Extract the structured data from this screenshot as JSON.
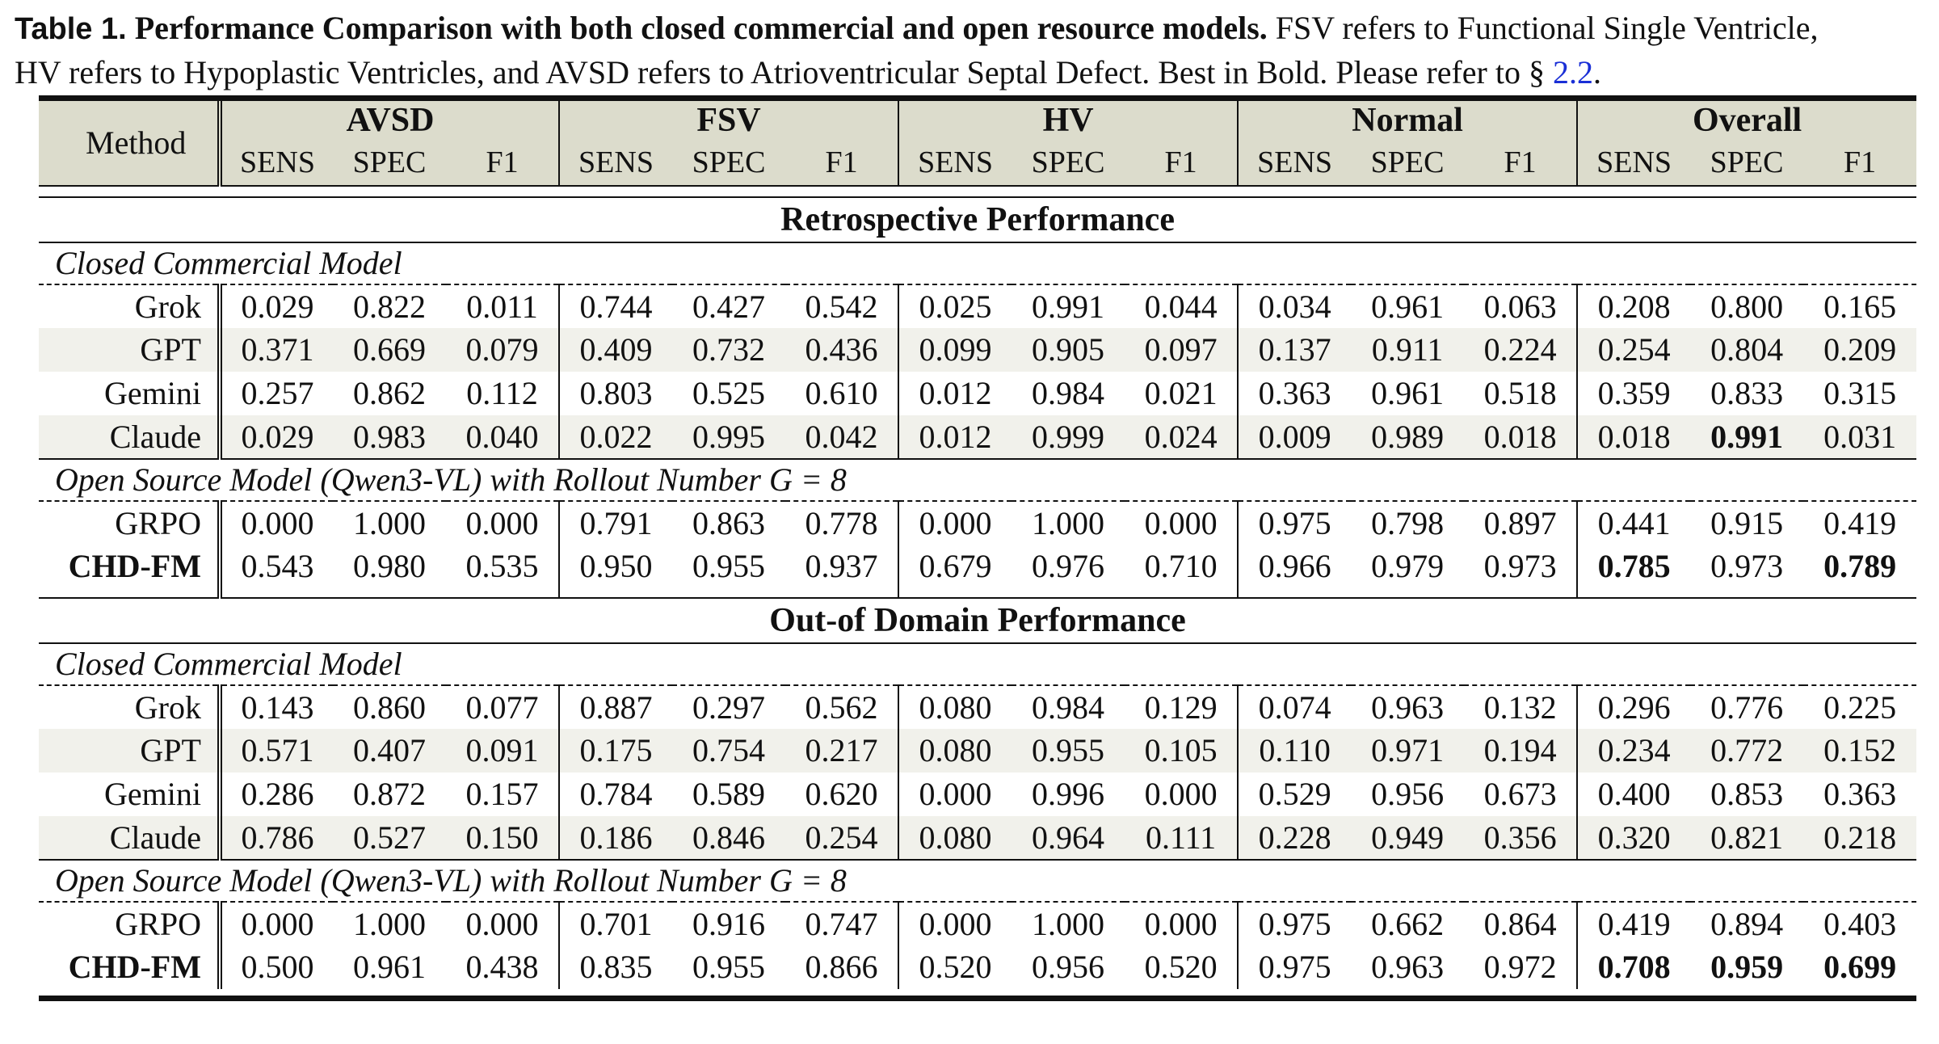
{
  "caption": {
    "label": "Table 1.",
    "title": "Performance Comparison with both closed commercial and open resource models.",
    "text_a": "FSV refers to Functional Single Ventricle,",
    "text_b": "HV refers to Hypoplastic Ventricles, and AVSD refers to Atrioventricular Septal Defect. Best in Bold. Please refer to §",
    "link": "2.2",
    "end": "."
  },
  "header": {
    "method": "Method",
    "groups": [
      "AVSD",
      "FSV",
      "HV",
      "Normal",
      "Overall"
    ],
    "metrics": [
      "SENS",
      "SPEC",
      "F1"
    ]
  },
  "sections": [
    {
      "title": "Retrospective Performance",
      "groups": [
        {
          "label": "Closed Commercial Model",
          "rows": [
            {
              "method": "Grok",
              "values": [
                "0.029",
                "0.822",
                "0.011",
                "0.744",
                "0.427",
                "0.542",
                "0.025",
                "0.991",
                "0.044",
                "0.034",
                "0.961",
                "0.063",
                "0.208",
                "0.800",
                "0.165"
              ]
            },
            {
              "method": "GPT",
              "values": [
                "0.371",
                "0.669",
                "0.079",
                "0.409",
                "0.732",
                "0.436",
                "0.099",
                "0.905",
                "0.097",
                "0.137",
                "0.911",
                "0.224",
                "0.254",
                "0.804",
                "0.209"
              ]
            },
            {
              "method": "Gemini",
              "values": [
                "0.257",
                "0.862",
                "0.112",
                "0.803",
                "0.525",
                "0.610",
                "0.012",
                "0.984",
                "0.021",
                "0.363",
                "0.961",
                "0.518",
                "0.359",
                "0.833",
                "0.315"
              ]
            },
            {
              "method": "Claude",
              "values": [
                "0.029",
                "0.983",
                "0.040",
                "0.022",
                "0.995",
                "0.042",
                "0.012",
                "0.999",
                "0.024",
                "0.009",
                "0.989",
                "0.018",
                "0.018",
                "0.991",
                "0.031"
              ]
            }
          ]
        },
        {
          "label": "Open Source Model (Qwen3-VL) with Rollout Number G = 8",
          "rows": [
            {
              "method": "GRPO",
              "values": [
                "0.000",
                "1.000",
                "0.000",
                "0.791",
                "0.863",
                "0.778",
                "0.000",
                "1.000",
                "0.000",
                "0.975",
                "0.798",
                "0.897",
                "0.441",
                "0.915",
                "0.419"
              ]
            },
            {
              "method": "CHD-FM",
              "values": [
                "0.543",
                "0.980",
                "0.535",
                "0.950",
                "0.955",
                "0.937",
                "0.679",
                "0.976",
                "0.710",
                "0.966",
                "0.979",
                "0.973",
                "0.785",
                "0.973",
                "0.789"
              ]
            }
          ]
        }
      ]
    },
    {
      "title": "Out-of Domain Performance",
      "groups": [
        {
          "label": "Closed Commercial Model",
          "rows": [
            {
              "method": "Grok",
              "values": [
                "0.143",
                "0.860",
                "0.077",
                "0.887",
                "0.297",
                "0.562",
                "0.080",
                "0.984",
                "0.129",
                "0.074",
                "0.963",
                "0.132",
                "0.296",
                "0.776",
                "0.225"
              ]
            },
            {
              "method": "GPT",
              "values": [
                "0.571",
                "0.407",
                "0.091",
                "0.175",
                "0.754",
                "0.217",
                "0.080",
                "0.955",
                "0.105",
                "0.110",
                "0.971",
                "0.194",
                "0.234",
                "0.772",
                "0.152"
              ]
            },
            {
              "method": "Gemini",
              "values": [
                "0.286",
                "0.872",
                "0.157",
                "0.784",
                "0.589",
                "0.620",
                "0.000",
                "0.996",
                "0.000",
                "0.529",
                "0.956",
                "0.673",
                "0.400",
                "0.853",
                "0.363"
              ]
            },
            {
              "method": "Claude",
              "values": [
                "0.786",
                "0.527",
                "0.150",
                "0.186",
                "0.846",
                "0.254",
                "0.080",
                "0.964",
                "0.111",
                "0.228",
                "0.949",
                "0.356",
                "0.320",
                "0.821",
                "0.218"
              ]
            }
          ]
        },
        {
          "label": "Open Source Model (Qwen3-VL) with Rollout Number G = 8",
          "rows": [
            {
              "method": "GRPO",
              "values": [
                "0.000",
                "1.000",
                "0.000",
                "0.701",
                "0.916",
                "0.747",
                "0.000",
                "1.000",
                "0.000",
                "0.975",
                "0.662",
                "0.864",
                "0.419",
                "0.894",
                "0.403"
              ]
            },
            {
              "method": "CHD-FM",
              "values": [
                "0.500",
                "0.961",
                "0.438",
                "0.835",
                "0.955",
                "0.866",
                "0.520",
                "0.956",
                "0.520",
                "0.975",
                "0.963",
                "0.972",
                "0.708",
                "0.959",
                "0.699"
              ]
            }
          ]
        }
      ]
    }
  ],
  "bold_cells": {
    "retrospective": {
      "Claude": [
        13
      ],
      "CHD-FM": [
        12,
        14
      ]
    },
    "out_of_domain": {
      "CHD-FM": [
        12,
        13,
        14
      ]
    }
  }
}
